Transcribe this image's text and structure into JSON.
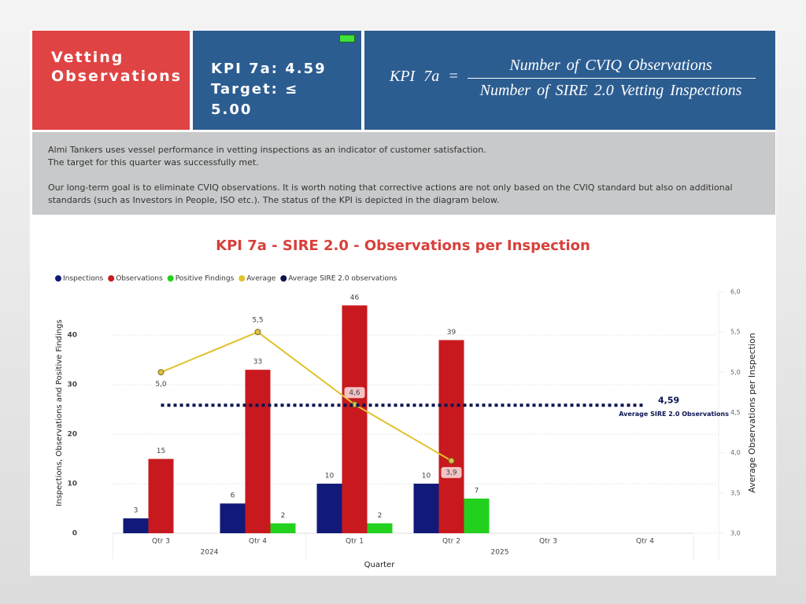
{
  "header": {
    "title": "Vetting Observations",
    "kpi": "KPI 7a: 4.59",
    "target": "Target: ≤ 5.00",
    "formula": {
      "lhs": "KPI 7a =",
      "numerator": "Number of CVIQ Observations",
      "denominator": "Number of SIRE 2.0 Vetting Inspections"
    }
  },
  "description": [
    "Almi Tankers uses vessel performance in vetting inspections as an indicator of customer satisfaction.",
    "The target for this quarter was successfully met.",
    "Our long-term goal is to eliminate CVIQ observations. It is worth noting that corrective actions are not only based on the CVIQ standard but also on additional standards (such as Investors in People, ISO etc.). The  status of the KPI is depicted in the diagram below."
  ],
  "chart_data": {
    "type": "bar",
    "title": "KPI 7a - SIRE 2.0 - Observations per Inspection",
    "groups": [
      {
        "label": "2024",
        "categories": [
          "Qtr 3",
          "Qtr 4"
        ]
      },
      {
        "label": "2025",
        "categories": [
          "Qtr 1",
          "Qtr 2",
          "Qtr 3",
          "Qtr 4"
        ]
      }
    ],
    "x_label": "Quarter",
    "y_label": "Inspections, Observations and Positive Findings",
    "y2_label": "Average Observations per Inspection",
    "series": [
      {
        "name": "Inspections",
        "type": "bar",
        "color": "#111a78",
        "values": [
          3,
          6,
          10,
          10,
          null,
          null
        ]
      },
      {
        "name": "Observations",
        "type": "bar",
        "color": "#c8191e",
        "values": [
          15,
          33,
          46,
          39,
          null,
          null
        ]
      },
      {
        "name": "Positive Findings",
        "type": "bar",
        "color": "#22d11e",
        "values": [
          null,
          2,
          2,
          7,
          null,
          null
        ]
      },
      {
        "name": "Average",
        "type": "line",
        "axis": "y2",
        "color": "#e0c22e",
        "values": [
          5.0,
          5.5,
          4.6,
          3.9,
          null,
          null
        ],
        "value_labels": [
          "5,0",
          "5,5",
          "4,6",
          "3,9",
          null,
          null
        ]
      }
    ],
    "reference_line": {
      "name": "Average SIRE 2.0 observations",
      "axis": "y2",
      "color": "#0b1450",
      "value": 4.59,
      "value_label": "4,59",
      "label": "Average SIRE 2.0 Observations"
    },
    "ylim": [
      0,
      48.75
    ],
    "yticks": [
      0,
      10,
      20,
      30,
      40
    ],
    "y2lim": [
      3,
      6
    ],
    "y2ticks": [
      {
        "value": 3,
        "label": "3,0"
      },
      {
        "value": 3.5,
        "label": "3,5"
      },
      {
        "value": 4,
        "label": "4,0"
      },
      {
        "value": 4.5,
        "label": "4,5"
      },
      {
        "value": 5,
        "label": "5,0"
      },
      {
        "value": 5.5,
        "label": "5,5"
      },
      {
        "value": 6,
        "label": "6,0"
      }
    ],
    "grid": true,
    "legend": "top-left"
  }
}
